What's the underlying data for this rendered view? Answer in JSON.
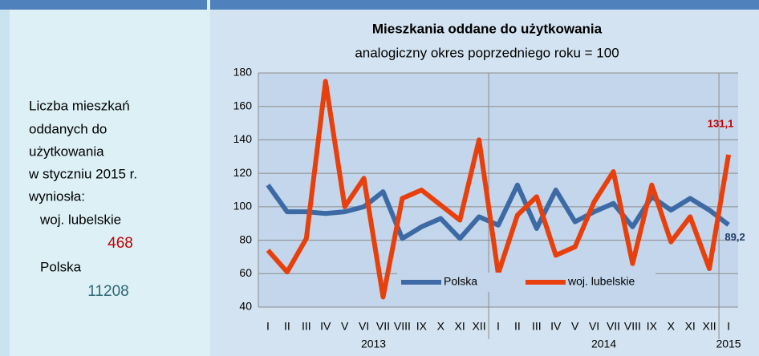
{
  "panel": {
    "lines": [
      "Liczba mieszkań",
      "oddanych do",
      "użytkowania",
      "w styczniu 2015 r.",
      "wyniosła:"
    ],
    "region_label": "woj. lubelskie",
    "region_value": 468,
    "country_label": "Polska",
    "country_value": 11208
  },
  "chart_data": {
    "type": "line",
    "title": "Mieszkania oddane do użytkowania",
    "subtitle": "analogiczny okres poprzedniego roku = 100",
    "categories": [
      "I",
      "II",
      "III",
      "IV",
      "V",
      "VI",
      "VII",
      "VIII",
      "IX",
      "X",
      "XI",
      "XII",
      "I",
      "II",
      "III",
      "IV",
      "V",
      "VI",
      "VII",
      "VIII",
      "IX",
      "X",
      "XI",
      "XII",
      "I"
    ],
    "year_labels": [
      "2013",
      "2014",
      "2015"
    ],
    "series": [
      {
        "name": "Polska",
        "color": "#3d6aa5",
        "values": [
          113,
          97,
          97,
          96,
          97,
          100,
          109,
          81,
          88,
          93,
          81,
          94,
          89,
          113,
          87,
          110,
          91,
          97,
          102,
          88,
          106,
          98,
          105,
          98,
          89.2
        ],
        "value_labels": [
          null,
          null,
          null,
          null,
          null,
          null,
          null,
          null,
          null,
          null,
          null,
          null,
          null,
          null,
          null,
          null,
          null,
          null,
          null,
          null,
          null,
          null,
          null,
          null,
          "89,2"
        ]
      },
      {
        "name": "woj. lubelskie",
        "color": "#e8400c",
        "values": [
          74,
          61,
          81,
          175,
          100,
          117,
          46,
          105,
          110,
          101,
          92,
          140,
          60,
          95,
          106,
          71,
          76,
          103,
          121,
          66,
          113,
          79,
          94,
          63,
          131.1
        ],
        "value_labels": [
          null,
          null,
          null,
          null,
          null,
          null,
          null,
          null,
          null,
          null,
          null,
          null,
          null,
          null,
          null,
          null,
          null,
          null,
          null,
          null,
          null,
          null,
          null,
          null,
          "131,1"
        ]
      }
    ],
    "ylim": [
      40,
      180
    ],
    "yticks": [
      40,
      60,
      80,
      100,
      120,
      140,
      160,
      180
    ],
    "grid": true
  }
}
